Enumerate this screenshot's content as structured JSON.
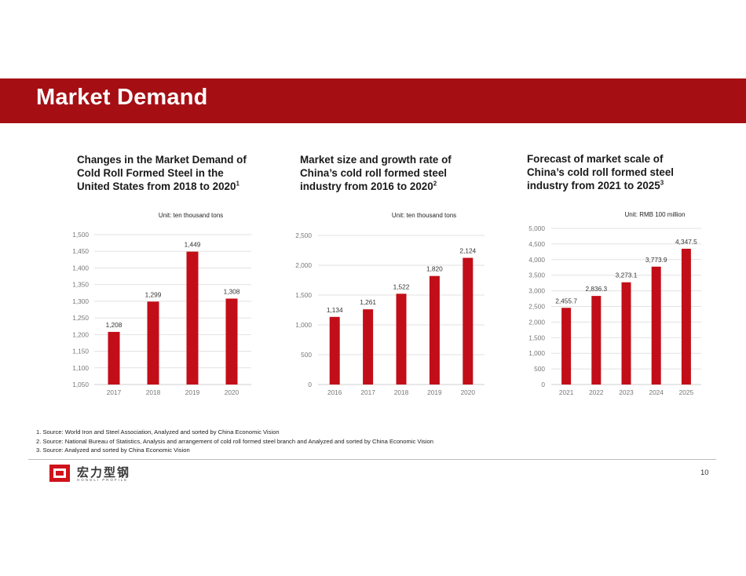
{
  "page": {
    "title": "Market Demand",
    "page_number": "10"
  },
  "charts": [
    {
      "title_lines": [
        "Changes in the Market Demand of",
        "Cold Roll Formed Steel in the",
        "United States from 2018 to 2020"
      ],
      "footnote_ref": "1",
      "unit": "Unit: ten thousand tons",
      "tick_labels": [
        "1,050",
        "1,100",
        "1,150",
        "1,200",
        "1,250",
        "1,300",
        "1,350",
        "1,400",
        "1,450",
        "1,500"
      ],
      "categories": [
        "2017",
        "2018",
        "2019",
        "2020"
      ],
      "value_labels": [
        "1,208",
        "1,299",
        "1,449",
        "1,308"
      ]
    },
    {
      "title_lines": [
        "Market size and growth rate of",
        "China’s cold roll formed steel",
        "industry from 2016 to 2020"
      ],
      "footnote_ref": "2",
      "unit": "Unit: ten thousand tons",
      "tick_labels": [
        "0",
        "500",
        "1,000",
        "1,500",
        "2,000",
        "2,500"
      ],
      "categories": [
        "2016",
        "2017",
        "2018",
        "2019",
        "2020"
      ],
      "value_labels": [
        "1,134",
        "1,261",
        "1,522",
        "1,820",
        "2,124"
      ]
    },
    {
      "title_lines": [
        "Forecast of market scale of",
        "China’s cold roll formed steel",
        "industry from 2021 to 2025"
      ],
      "footnote_ref": "3",
      "unit": "Unit: RMB 100 million",
      "tick_labels": [
        "0",
        "500",
        "1,000",
        "1,500",
        "2,000",
        "2,500",
        "3,000",
        "3,500",
        "4,000",
        "4,500",
        "5,000"
      ],
      "categories": [
        "2021",
        "2022",
        "2023",
        "2024",
        "2025"
      ],
      "value_labels": [
        "2,455.7",
        "2,836.3",
        "3,273.1",
        "3,773.9",
        "4,347.5"
      ]
    }
  ],
  "chart_data": [
    {
      "type": "bar",
      "title": "Changes in the Market Demand of Cold Roll Formed Steel in the United States from 2018 to 2020",
      "ylabel": "Unit: ten thousand tons",
      "categories": [
        "2017",
        "2018",
        "2019",
        "2020"
      ],
      "values": [
        1208,
        1299,
        1449,
        1308
      ],
      "ylim": [
        1050,
        1500
      ],
      "yticks": [
        1050,
        1100,
        1150,
        1200,
        1250,
        1300,
        1350,
        1400,
        1450,
        1500
      ],
      "grid": true,
      "color": "#c20e18"
    },
    {
      "type": "bar",
      "title": "Market size and growth rate of China’s cold roll formed steel industry from 2016 to 2020",
      "ylabel": "Unit: ten thousand tons",
      "categories": [
        "2016",
        "2017",
        "2018",
        "2019",
        "2020"
      ],
      "values": [
        1134,
        1261,
        1522,
        1820,
        2124
      ],
      "ylim": [
        0,
        2500
      ],
      "yticks": [
        0,
        500,
        1000,
        1500,
        2000,
        2500
      ],
      "grid": true,
      "color": "#c20e18"
    },
    {
      "type": "bar",
      "title": "Forecast of market scale of China’s cold roll formed steel industry from 2021 to 2025",
      "ylabel": "Unit: RMB 100 million",
      "categories": [
        "2021",
        "2022",
        "2023",
        "2024",
        "2025"
      ],
      "values": [
        2455.7,
        2836.3,
        3273.1,
        3773.9,
        4347.5
      ],
      "ylim": [
        0,
        5000
      ],
      "yticks": [
        0,
        500,
        1000,
        1500,
        2000,
        2500,
        3000,
        3500,
        4000,
        4500,
        5000
      ],
      "grid": true,
      "color": "#c20e18"
    }
  ],
  "sources": [
    "1. Source: World Iron and Steel Association, Analyzed and sorted by China Economic Vision",
    "2. Source: National Bureau of Statistics, Analysis and arrangement of cold roll formed steel branch and Analyzed and sorted by China Economic Vision",
    "3. Source: Analyzed and sorted by China Economic Vision"
  ],
  "logo": {
    "name_cn": "宏力型钢",
    "name_en": "HONGLI PROFILE"
  },
  "colors": {
    "brand_red": "#a50f14",
    "bar_red": "#c20e18"
  }
}
